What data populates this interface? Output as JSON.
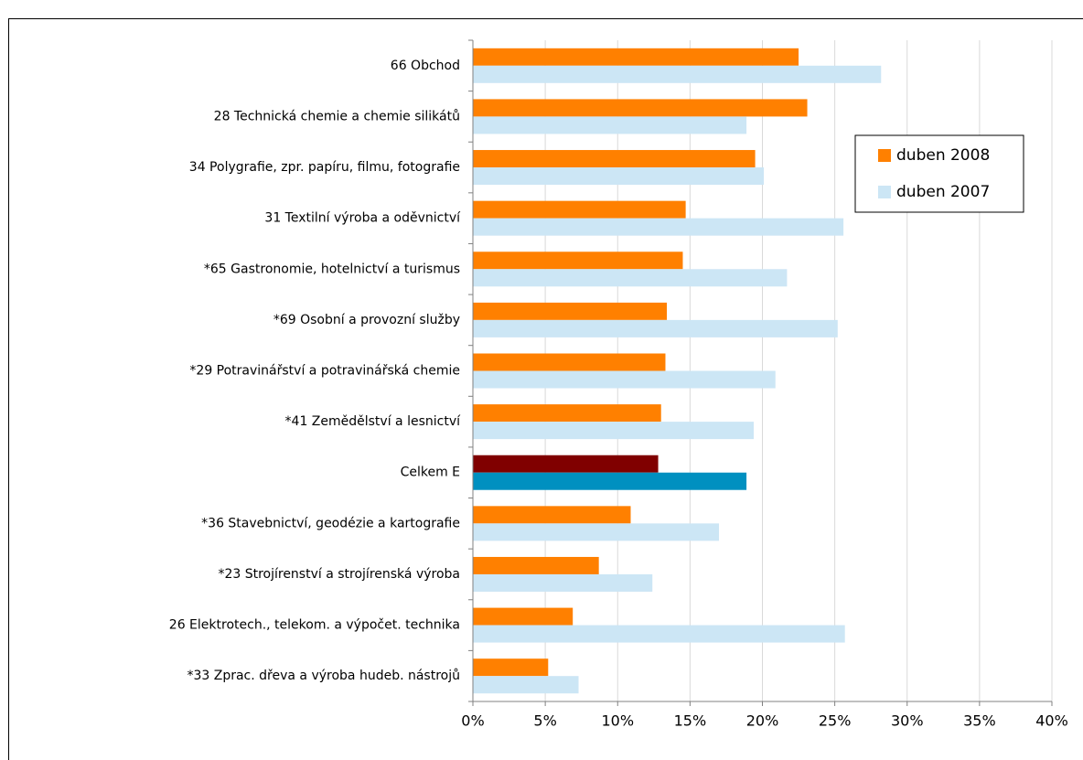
{
  "chart_data": {
    "type": "barh",
    "categories": [
      "66 Obchod",
      "28 Technická chemie a chemie silikátů",
      "34 Polygrafie, zpr. papíru, filmu, fotografie",
      "31 Textilní výroba a oděvnictví",
      "*65 Gastronomie, hotelnictví a turismus",
      "*69 Osobní a provozní služby",
      "*29 Potravinářství a potravinářská chemie",
      "*41 Zemědělství a lesnictví",
      "Celkem E",
      "*36 Stavebnictví, geodézie a kartografie",
      "*23 Strojírenství a strojírenská výroba",
      "26 Elektrotech., telekom. a výpočet. technika",
      "*33 Zprac. dřeva a výroba hudeb. nástrojů"
    ],
    "series": [
      {
        "name": "duben 2008",
        "color": "#ff8000",
        "colors": [
          "#ff8000",
          "#ff8000",
          "#ff8000",
          "#ff8000",
          "#ff8000",
          "#ff8000",
          "#ff8000",
          "#ff8000",
          "#800000",
          "#ff8000",
          "#ff8000",
          "#ff8000",
          "#ff8000"
        ],
        "values": [
          22.5,
          23.1,
          19.5,
          14.7,
          14.5,
          13.4,
          13.3,
          13.0,
          12.8,
          10.9,
          8.7,
          6.9,
          5.2
        ]
      },
      {
        "name": "duben 2007",
        "color": "#cce6f5",
        "colors": [
          "#cce6f5",
          "#cce6f5",
          "#cce6f5",
          "#cce6f5",
          "#cce6f5",
          "#cce6f5",
          "#cce6f5",
          "#cce6f5",
          "#0090c0",
          "#cce6f5",
          "#cce6f5",
          "#cce6f5",
          "#cce6f5"
        ],
        "values": [
          28.2,
          18.9,
          20.1,
          25.6,
          21.7,
          25.2,
          20.9,
          19.4,
          18.9,
          17.0,
          12.4,
          25.7,
          7.3
        ]
      }
    ],
    "xlim": [
      0,
      40
    ],
    "xticks": [
      {
        "value": 0,
        "label": "0%"
      },
      {
        "value": 5,
        "label": "5%"
      },
      {
        "value": 10,
        "label": "10%"
      },
      {
        "value": 15,
        "label": "15%"
      },
      {
        "value": 20,
        "label": "20%"
      },
      {
        "value": 25,
        "label": "25%"
      },
      {
        "value": 30,
        "label": "30%"
      },
      {
        "value": 35,
        "label": "35%"
      },
      {
        "value": 40,
        "label": "40%"
      }
    ],
    "grid": true,
    "legend": "upper right"
  }
}
